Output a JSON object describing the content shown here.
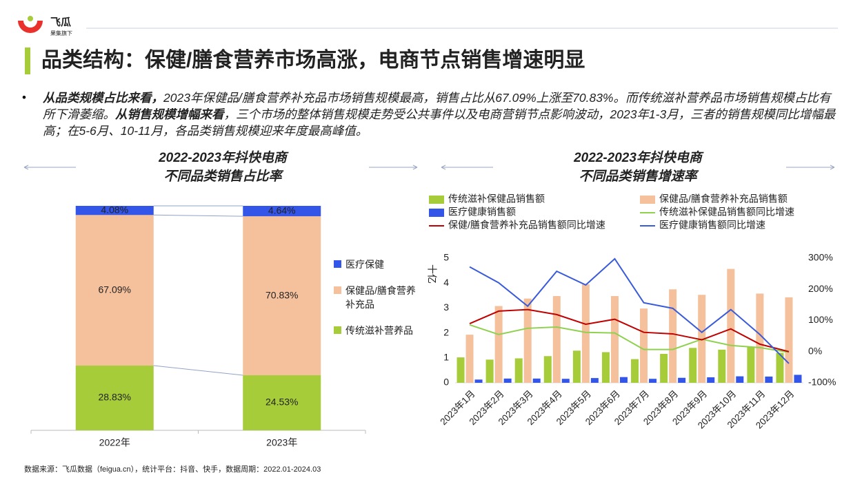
{
  "header": {
    "brand": "飞瓜",
    "tagline": "果集旗下",
    "title": "品类结构：保健/膳食营养市场高涨，电商节点销售增速明显"
  },
  "summary": [
    {
      "text": "从品类规模占比来看，",
      "bold": true
    },
    {
      "text": "2023年保健品/膳食营养补充品市场销售规模最高，销售占比从67.09%上涨至70.83%。而传统滋补营养品市场销售规模占比有所下滑萎缩。",
      "bold": false
    },
    {
      "text": "从销售规模增幅来看",
      "bold": true
    },
    {
      "text": "，三个市场的整体销售规模走势受公共事件以及电商营销节点影响波动，2023年1-3月，三者的销售规模同比增幅最高；在5-6月、10-11月，各品类销售规模迎来年度最高峰值。",
      "bold": false
    }
  ],
  "chart_data": [
    {
      "type": "stacked_bar",
      "title": [
        "2022-2023年抖快电商",
        "不同品类销售占比率"
      ],
      "categories": [
        "2022年",
        "2023年"
      ],
      "series": [
        {
          "name": "传统滋补营养品",
          "color": "#a6cc3a",
          "values": [
            28.83,
            24.53
          ],
          "value_labels": [
            "28.83%",
            "24.53%"
          ]
        },
        {
          "name": "保健品/膳食营养补充品",
          "color": "#f5c09c",
          "values": [
            67.09,
            70.83
          ],
          "value_labels": [
            "67.09%",
            "70.83%"
          ]
        },
        {
          "name": "医疗保健",
          "color": "#3355e8",
          "values": [
            4.08,
            4.64
          ],
          "value_labels": [
            "4.08%",
            "4.64%"
          ]
        }
      ],
      "ylim": [
        0,
        100
      ],
      "legend": "right"
    },
    {
      "type": "combo",
      "title": [
        "2022-2023年抖快电商",
        "不同品类销售增速率"
      ],
      "y_label": "十亿",
      "categories": [
        "2023年1月",
        "2023年2月",
        "2023年3月",
        "2023年4月",
        "2023年5月",
        "2023年6月",
        "2023年7月",
        "2023年8月",
        "2023年9月",
        "2023年10月",
        "2023年11月",
        "2023年12月"
      ],
      "series": [
        {
          "name": "传统滋补保健品销售额",
          "type": "bar",
          "color": "#a6cc3a",
          "values": [
            1.02,
            0.93,
            0.98,
            1.07,
            1.29,
            1.23,
            0.95,
            1.16,
            1.4,
            1.33,
            1.43,
            1.2
          ]
        },
        {
          "name": "保健品/膳食营养补充品销售额",
          "type": "bar",
          "color": "#f5c09c",
          "values": [
            1.93,
            3.08,
            3.38,
            3.48,
            3.95,
            3.48,
            2.98,
            3.75,
            3.53,
            4.57,
            3.58,
            3.43
          ]
        },
        {
          "name": "医疗健康销售额",
          "type": "bar",
          "color": "#3355e8",
          "values": [
            0.13,
            0.17,
            0.17,
            0.16,
            0.19,
            0.23,
            0.16,
            0.2,
            0.22,
            0.26,
            0.25,
            0.32
          ]
        },
        {
          "name": "传统滋补保健品销售额同比增速",
          "type": "line",
          "axis": "y2",
          "color": "#8fd14f",
          "values": [
            86,
            55,
            75,
            79,
            62,
            60,
            7,
            7,
            40,
            20,
            13,
            -2
          ]
        },
        {
          "name": "保健/膳食营养补充品销售额同比增速",
          "type": "line",
          "axis": "y2",
          "color": "#c00000",
          "values": [
            90,
            130,
            135,
            119,
            88,
            104,
            62,
            57,
            38,
            73,
            24,
            0
          ]
        },
        {
          "name": "医疗健康销售额同比增速",
          "type": "line",
          "axis": "y2",
          "color": "#3a5bd9",
          "values": [
            272,
            221,
            146,
            258,
            214,
            298,
            157,
            139,
            62,
            135,
            55,
            -38
          ]
        }
      ],
      "ylim": [
        0,
        5
      ],
      "yticks": [
        0,
        1,
        2,
        3,
        4,
        5
      ],
      "y2lim": [
        -100,
        300
      ],
      "y2ticks": [
        {
          "value": -100,
          "label": "-100%"
        },
        {
          "value": 0,
          "label": "0%"
        },
        {
          "value": 100,
          "label": "100%"
        },
        {
          "value": 200,
          "label": "200%"
        },
        {
          "value": 300,
          "label": "300%"
        }
      ],
      "legend": "top"
    }
  ],
  "source": "数据来源：飞瓜数据（feigua.cn），统计平台：抖音、快手，数据周期：2022.01-2024.03"
}
